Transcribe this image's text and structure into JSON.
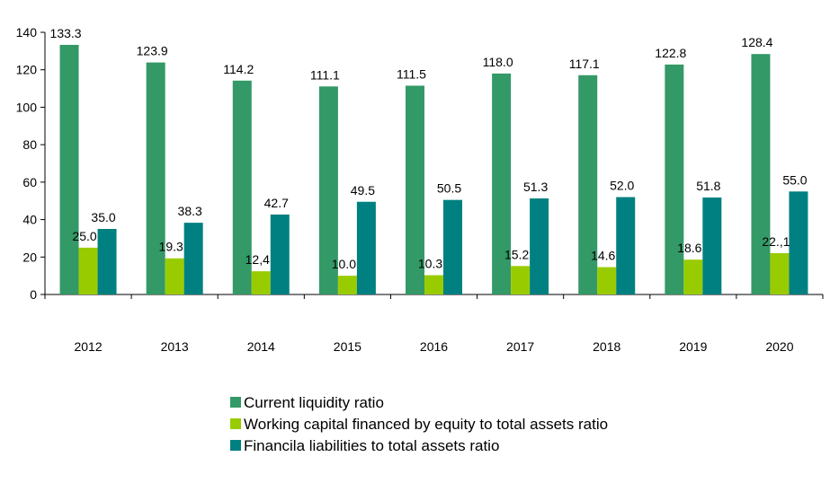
{
  "chart_data": {
    "type": "bar",
    "title": "",
    "xlabel": "",
    "ylabel": "",
    "categories": [
      "2012",
      "2013",
      "2014",
      "2015",
      "2016",
      "2017",
      "2018",
      "2019",
      "2020"
    ],
    "series": [
      {
        "name": "Current liquidity ratio",
        "color": "#339966",
        "values": [
          133.3,
          123.9,
          114.2,
          111.1,
          111.5,
          118.0,
          117.1,
          122.8,
          128.4
        ],
        "labels": [
          "133.3",
          "123.9",
          "114.2",
          "111.1",
          "111.5",
          "118.0",
          "117.1",
          "122.8",
          "128.4"
        ]
      },
      {
        "name": "Working capital financed by equity to total assets ratio",
        "color": "#99CC00",
        "values": [
          25.0,
          19.3,
          12.4,
          10.0,
          10.3,
          15.2,
          14.6,
          18.6,
          22.1
        ],
        "labels": [
          "25.0",
          "19.3",
          "12,4",
          "10.0",
          "10.3",
          "15.2",
          "14.6",
          "18.6",
          "22.,1"
        ]
      },
      {
        "name": "Financila liabilities to total assets ratio",
        "color": "#008080",
        "values": [
          35.0,
          38.3,
          42.7,
          49.5,
          50.5,
          51.3,
          52.0,
          51.8,
          55.0
        ],
        "labels": [
          "35.0",
          "38.3",
          "42.7",
          "49.5",
          "50.5",
          "51.3",
          "52.0",
          "51.8",
          "55.0"
        ]
      }
    ],
    "ylim": [
      0,
      140
    ],
    "yticks": [
      "0",
      "20",
      "40",
      "60",
      "80",
      "100",
      "120",
      "140"
    ],
    "grid": false,
    "legend_position": "bottom-center"
  }
}
